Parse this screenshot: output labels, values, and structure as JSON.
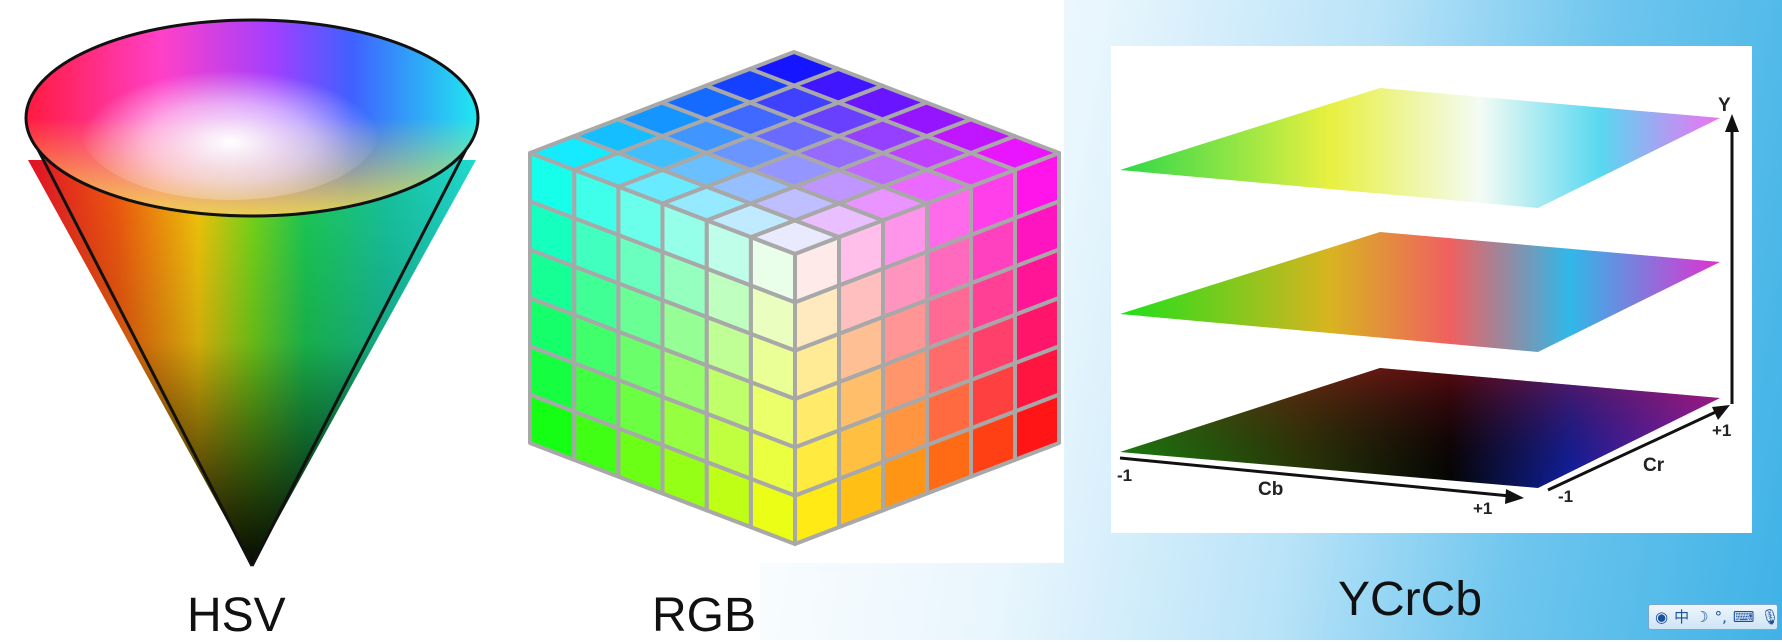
{
  "captions": {
    "hsv": "HSV",
    "rgb": "RGB",
    "ycrcb": "YCrCb"
  },
  "ycrcb_axes": {
    "y": "Y",
    "cr": "Cr",
    "cb": "Cb",
    "cr_plus": "+1",
    "cr_minus": "-1",
    "cb_plus": "+1",
    "cb_minus": "-1"
  },
  "tray": {
    "lang": "中",
    "icons": [
      "ime-logo-icon",
      "moon-icon",
      "punctuation-icon",
      "keyboard-icon",
      "microphone-icon"
    ]
  },
  "colors": {
    "rgb_grid": "#a8a8a8",
    "cone_outline": "#111111"
  }
}
